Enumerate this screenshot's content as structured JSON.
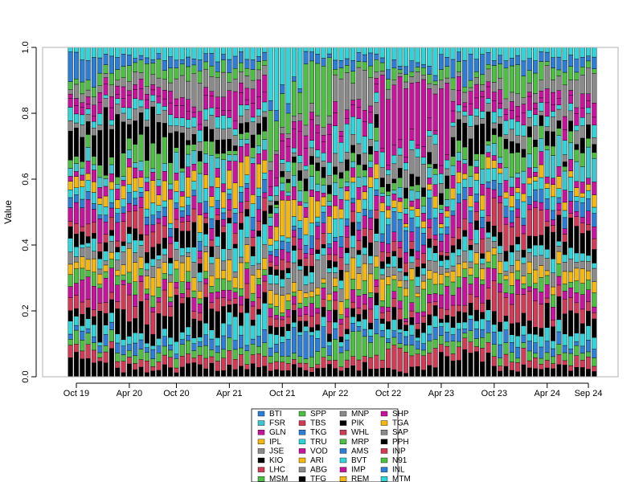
{
  "chart_data": {
    "type": "bar",
    "stacked": true,
    "ylabel": "Value",
    "ylim": [
      0,
      1
    ],
    "yticks": [
      0.0,
      0.2,
      0.4,
      0.6,
      0.8,
      1.0
    ],
    "ytick_labels": [
      "0.0",
      "0.2",
      "0.4",
      "0.6",
      "0.8",
      "1.0"
    ],
    "x_tick_labels": [
      "Oct 19",
      "Apr 20",
      "Oct 20",
      "Apr 21",
      "Oct 21",
      "Apr 22",
      "Oct 22",
      "Apr 23",
      "Oct 23",
      "Apr 24",
      "Sep 24"
    ],
    "x_tick_bars": [
      1,
      10,
      18,
      27,
      36,
      45,
      54,
      63,
      72,
      81,
      88
    ],
    "n_bars": 90,
    "grid": false,
    "legend_position": "bottom",
    "series": [
      {
        "name": "BTI",
        "color": "#2c7fd6"
      },
      {
        "name": "FSR",
        "color": "#3cc6cf"
      },
      {
        "name": "GLN",
        "color": "#c8139c"
      },
      {
        "name": "IPL",
        "color": "#f3b70f"
      },
      {
        "name": "JSE",
        "color": "#8a8a8a"
      },
      {
        "name": "KIO",
        "color": "#000000"
      },
      {
        "name": "LHC",
        "color": "#d23a55"
      },
      {
        "name": "MSM",
        "color": "#4dbf43"
      },
      {
        "name": "SPP",
        "color": "#4dbf43"
      },
      {
        "name": "TBS",
        "color": "#d23a55"
      },
      {
        "name": "TKG",
        "color": "#2c7fd6"
      },
      {
        "name": "TRU",
        "color": "#2fd5d8"
      },
      {
        "name": "VOD",
        "color": "#c8139c"
      },
      {
        "name": "ARI",
        "color": "#f3b70f"
      },
      {
        "name": "ABG",
        "color": "#8a8a8a"
      },
      {
        "name": "TFG",
        "color": "#000000"
      },
      {
        "name": "MNP",
        "color": "#8a8a8a"
      },
      {
        "name": "PIK",
        "color": "#000000"
      },
      {
        "name": "WHL",
        "color": "#d23a55"
      },
      {
        "name": "MRP",
        "color": "#4dbf43"
      },
      {
        "name": "AMS",
        "color": "#2c7fd6"
      },
      {
        "name": "BVT",
        "color": "#2fd5d8"
      },
      {
        "name": "IMP",
        "color": "#c8139c"
      },
      {
        "name": "REM",
        "color": "#f3b70f"
      },
      {
        "name": "SHP",
        "color": "#c8139c"
      },
      {
        "name": "TGA",
        "color": "#f3b70f"
      },
      {
        "name": "SAP",
        "color": "#8a8a8a"
      },
      {
        "name": "PPH",
        "color": "#000000"
      },
      {
        "name": "INP",
        "color": "#d23a55"
      },
      {
        "name": "N91",
        "color": "#4dbf43"
      },
      {
        "name": "INL",
        "color": "#2c7fd6"
      },
      {
        "name": "MTM",
        "color": "#2fd5d8"
      }
    ],
    "stack_order": [
      "KIO",
      "LHC",
      "MSM",
      "TKG",
      "TRU",
      "TFG",
      "TBS",
      "VOD",
      "MSM",
      "IPL",
      "JSE",
      "TRU",
      "KIO",
      "LHC",
      "GLN",
      "BTI",
      "TRU",
      "IPL",
      "VOD",
      "FSR",
      "MRP",
      "TFG",
      "JSE",
      "BVT",
      "GLN",
      "IMP",
      "ABG",
      "SPP",
      "AMS",
      "MTM"
    ]
  }
}
